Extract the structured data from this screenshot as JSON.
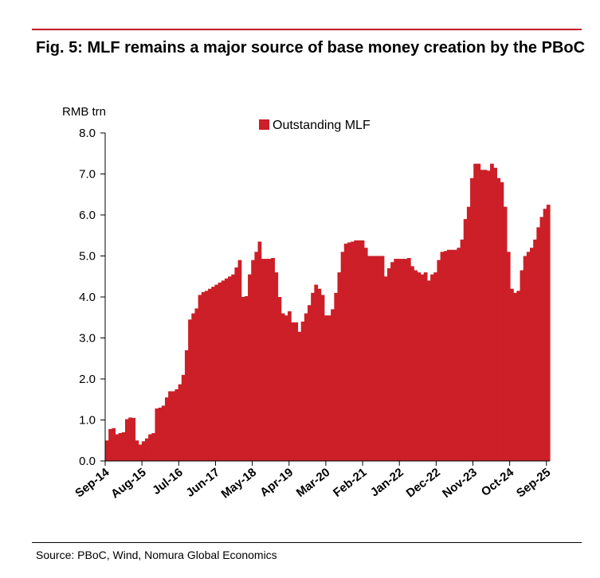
{
  "figure": {
    "title": "Fig. 5: MLF remains a major source of base money creation by the PBoC",
    "source": "Source: PBoC, Wind, Nomura Global Economics"
  },
  "colors": {
    "accent": "#c8102e",
    "bar": "#cc1f27",
    "axis": "#000000"
  },
  "chart_data": {
    "type": "area",
    "title": "",
    "ylabel": "RMB trn",
    "xlabel": "",
    "ylim": [
      0,
      8
    ],
    "yticks": [
      0,
      1,
      2,
      3,
      4,
      5,
      6,
      7,
      8
    ],
    "ytick_labels": [
      "0.0",
      "1.0",
      "2.0",
      "3.0",
      "4.0",
      "5.0",
      "6.0",
      "7.0",
      "8.0"
    ],
    "x_range": [
      0,
      133
    ],
    "xticks": [
      {
        "label": "Sep-14",
        "index": 0
      },
      {
        "label": "Aug-15",
        "index": 11
      },
      {
        "label": "Jul-16",
        "index": 22
      },
      {
        "label": "Jun-17",
        "index": 33
      },
      {
        "label": "May-18",
        "index": 44
      },
      {
        "label": "Apr-19",
        "index": 55
      },
      {
        "label": "Mar-20",
        "index": 66
      },
      {
        "label": "Feb-21",
        "index": 77
      },
      {
        "label": "Jan-22",
        "index": 88
      },
      {
        "label": "Dec-22",
        "index": 99
      },
      {
        "label": "Nov-23",
        "index": 110
      },
      {
        "label": "Oct-24",
        "index": 121
      },
      {
        "label": "Sep-25",
        "index": 132
      }
    ],
    "legend": {
      "position": "top-center",
      "label": "Outstanding MLF"
    },
    "series": [
      {
        "name": "Outstanding MLF",
        "values": [
          0.5,
          0.78,
          0.8,
          0.65,
          0.68,
          0.7,
          1.02,
          1.06,
          1.05,
          0.5,
          0.4,
          0.48,
          0.55,
          0.65,
          0.68,
          1.28,
          1.3,
          1.35,
          1.55,
          1.7,
          1.7,
          1.75,
          1.87,
          2.1,
          2.7,
          3.45,
          3.6,
          3.72,
          4.05,
          4.12,
          4.15,
          4.2,
          4.25,
          4.3,
          4.35,
          4.4,
          4.45,
          4.5,
          4.55,
          4.72,
          4.9,
          4.0,
          4.02,
          4.55,
          4.9,
          5.1,
          5.35,
          4.93,
          4.93,
          4.93,
          4.95,
          4.6,
          4.0,
          3.6,
          3.55,
          3.65,
          3.38,
          3.38,
          3.15,
          3.4,
          3.6,
          3.8,
          4.1,
          4.3,
          4.2,
          4.05,
          3.55,
          3.55,
          3.7,
          4.1,
          4.6,
          5.1,
          5.3,
          5.33,
          5.35,
          5.38,
          5.38,
          5.38,
          5.2,
          5.0,
          5.0,
          5.0,
          5.0,
          5.0,
          4.5,
          4.7,
          4.85,
          4.93,
          4.93,
          4.93,
          4.93,
          4.95,
          4.75,
          4.65,
          4.6,
          4.55,
          4.6,
          4.4,
          4.55,
          4.6,
          4.9,
          5.1,
          5.12,
          5.15,
          5.15,
          5.15,
          5.2,
          5.4,
          5.9,
          6.2,
          6.9,
          7.25,
          7.25,
          7.1,
          7.1,
          7.08,
          7.25,
          7.15,
          6.9,
          6.8,
          6.2,
          5.1,
          4.2,
          4.1,
          4.15,
          4.65,
          5.0,
          5.1,
          5.2,
          5.4,
          5.7,
          5.95,
          6.15,
          6.25
        ]
      }
    ]
  }
}
